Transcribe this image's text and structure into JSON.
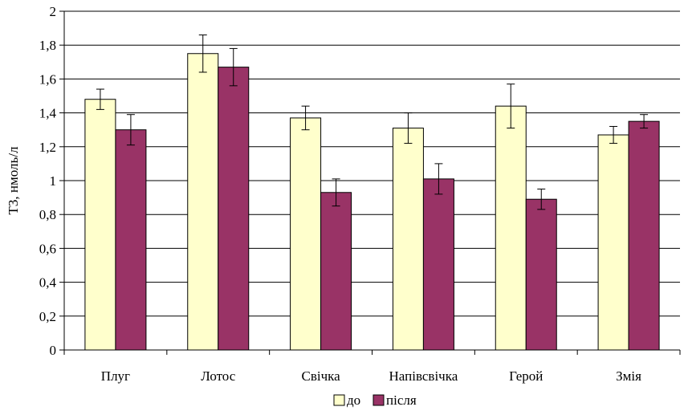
{
  "chart_data": {
    "type": "bar",
    "title": "",
    "xlabel": "",
    "ylabel": "Т3, нмоль/л",
    "ylim": [
      0,
      2
    ],
    "yticks": [
      "0",
      "0,2",
      "0,4",
      "0,6",
      "0,8",
      "1",
      "1,2",
      "1,4",
      "1,6",
      "1,8",
      "2"
    ],
    "grid": true,
    "legend_position": "bottom",
    "categories": [
      "Плуг",
      "Лотос",
      "Свічка",
      "Напівсвічка",
      "Герой",
      "Змія"
    ],
    "series": [
      {
        "name": "до",
        "color": "#ffffcc",
        "values": [
          1.48,
          1.75,
          1.37,
          1.31,
          1.44,
          1.27
        ],
        "errors": [
          0.06,
          0.11,
          0.07,
          0.09,
          0.13,
          0.05
        ]
      },
      {
        "name": "після",
        "color": "#993366",
        "values": [
          1.3,
          1.67,
          0.93,
          1.01,
          0.89,
          1.35
        ],
        "errors": [
          0.09,
          0.11,
          0.08,
          0.09,
          0.06,
          0.04
        ]
      }
    ]
  }
}
